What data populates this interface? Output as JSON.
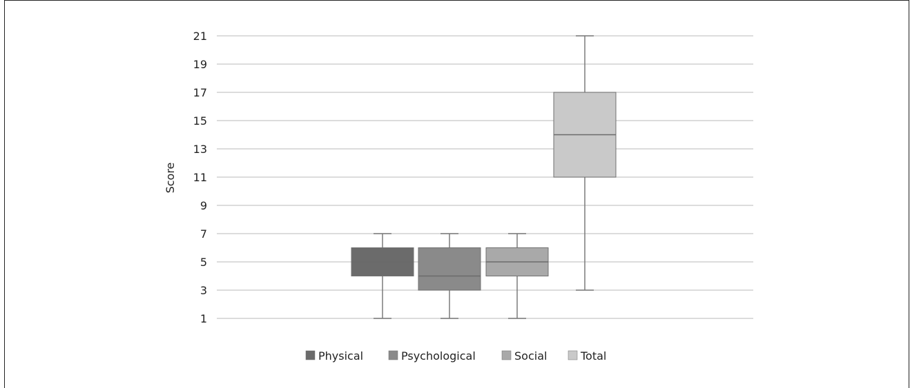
{
  "chart_data": {
    "type": "boxplot",
    "ylabel": "Score",
    "xlabel": "",
    "ylim": [
      1,
      21
    ],
    "yticks": [
      "1",
      "3",
      "5",
      "7",
      "9",
      "11",
      "13",
      "15",
      "17",
      "19",
      "21"
    ],
    "grid": true,
    "legend_position": "bottom",
    "series": [
      {
        "name": "Physical",
        "min": 1,
        "q1": 4,
        "median": 5,
        "q3": 6,
        "max": 7,
        "color": "#6b6b6b"
      },
      {
        "name": "Psychological",
        "min": 1,
        "q1": 3,
        "median": 4,
        "q3": 6,
        "max": 7,
        "color": "#8a8a8a"
      },
      {
        "name": "Social",
        "min": 1,
        "q1": 4,
        "median": 5,
        "q3": 6,
        "max": 7,
        "color": "#a9a9a9"
      },
      {
        "name": "Total",
        "min": 3,
        "q1": 11,
        "median": 14,
        "q3": 17,
        "max": 21,
        "color": "#c9c9c9"
      }
    ]
  }
}
